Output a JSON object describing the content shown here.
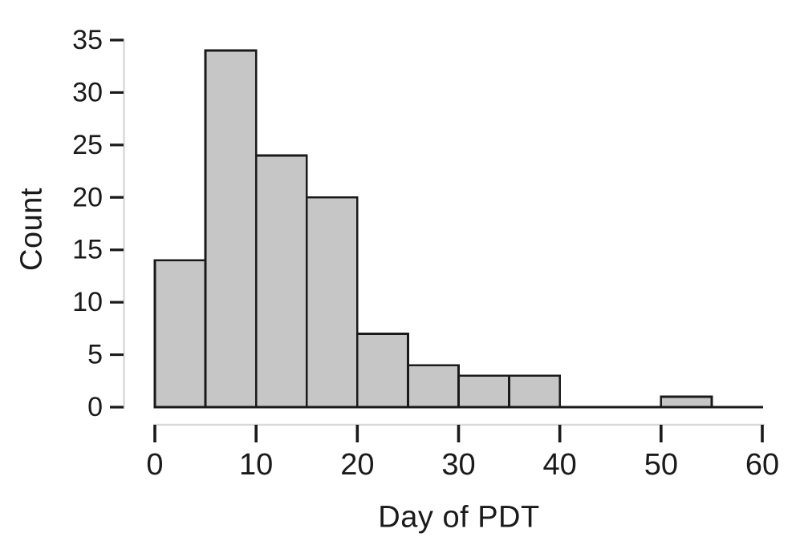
{
  "chart_data": {
    "type": "bar",
    "subtype": "histogram",
    "title": "",
    "xlabel": "Day of PDT",
    "ylabel": "Count",
    "bin_width": 5,
    "bin_starts": [
      0,
      5,
      10,
      15,
      20,
      25,
      30,
      35,
      40,
      45,
      50,
      55
    ],
    "counts": [
      14,
      34,
      24,
      20,
      7,
      4,
      3,
      3,
      0,
      0,
      1,
      0
    ],
    "xlim": [
      0,
      60
    ],
    "ylim": [
      0,
      35
    ],
    "xticks": [
      0,
      10,
      20,
      30,
      40,
      50,
      60
    ],
    "yticks": [
      0,
      5,
      10,
      15,
      20,
      25,
      30,
      35
    ],
    "grid": false,
    "legend": "none"
  },
  "style": {
    "bar_fill": "#c6c6c6",
    "bar_stroke": "#1a1a1a",
    "baseline_color": "#1a1a1a",
    "axis_guide_color": "#d9d9d9",
    "tick_color": "#1a1a1a",
    "text_color": "#1a1a1a"
  }
}
